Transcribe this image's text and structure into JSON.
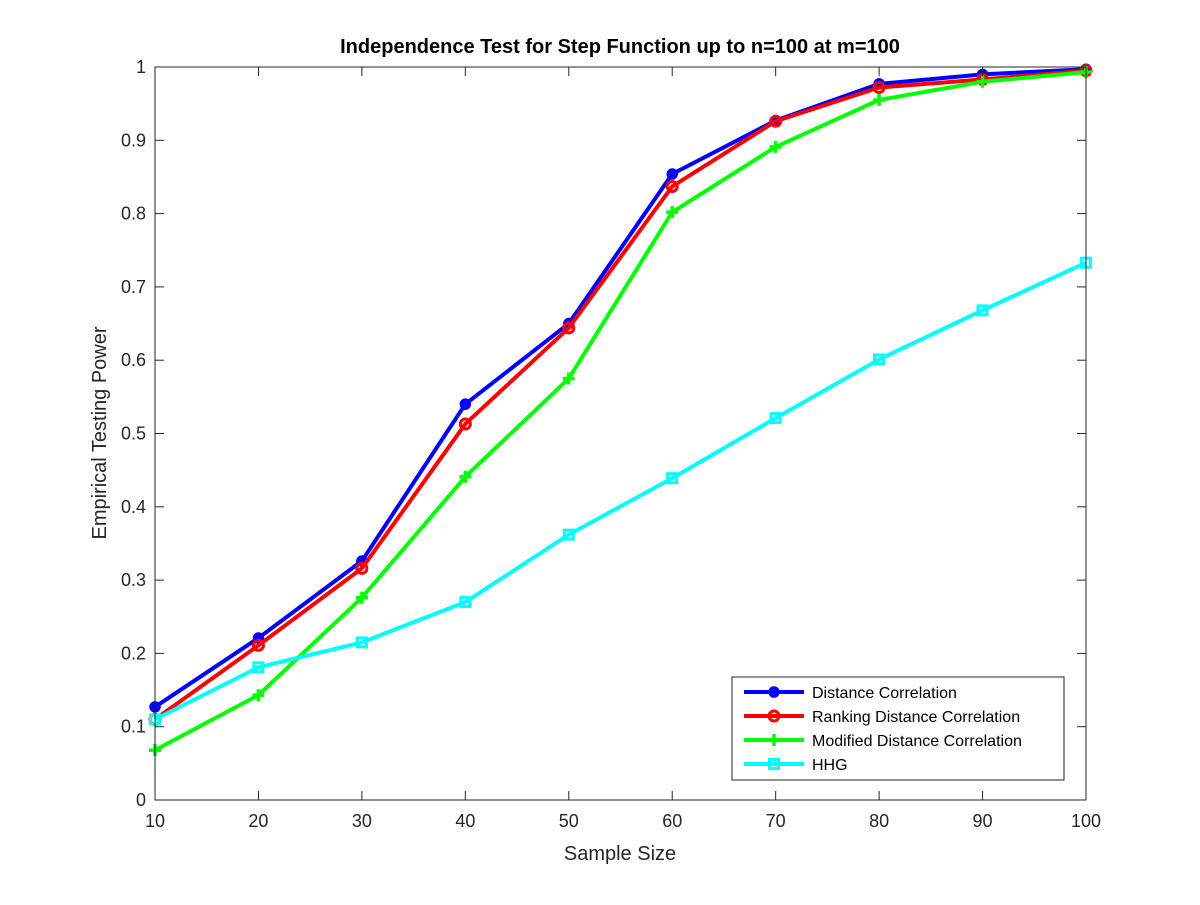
{
  "chart_data": {
    "type": "line",
    "title": "Independence Test for Step Function up to n=100 at m=100",
    "xlabel": "Sample Size",
    "ylabel": "Empirical Testing Power",
    "x": [
      10,
      20,
      30,
      40,
      50,
      60,
      70,
      80,
      90,
      100
    ],
    "xlim": [
      10,
      100
    ],
    "ylim": [
      0,
      1
    ],
    "xticks": [
      10,
      20,
      30,
      40,
      50,
      60,
      70,
      80,
      90,
      100
    ],
    "yticks": [
      0,
      0.1,
      0.2,
      0.3,
      0.4,
      0.5,
      0.6,
      0.7,
      0.8,
      0.9,
      1
    ],
    "xtick_labels": [
      "10",
      "20",
      "30",
      "40",
      "50",
      "60",
      "70",
      "80",
      "90",
      "100"
    ],
    "ytick_labels": [
      "0",
      "0.1",
      "0.2",
      "0.3",
      "0.4",
      "0.5",
      "0.6",
      "0.7",
      "0.8",
      "0.9",
      "1"
    ],
    "grid": false,
    "legend_position": "bottom-right",
    "series": [
      {
        "name": "Distance Correlation",
        "color": "#0000ff",
        "marker": "filled-circle",
        "values": [
          0.127,
          0.221,
          0.326,
          0.54,
          0.65,
          0.854,
          0.927,
          0.977,
          0.99,
          0.997
        ]
      },
      {
        "name": "Ranking Distance Correlation",
        "color": "#ff0000",
        "marker": "open-circle",
        "values": [
          0.11,
          0.211,
          0.316,
          0.513,
          0.644,
          0.837,
          0.926,
          0.972,
          0.983,
          0.995
        ]
      },
      {
        "name": "Modified Distance Correlation",
        "color": "#00ff00",
        "marker": "plus",
        "values": [
          0.068,
          0.143,
          0.276,
          0.441,
          0.575,
          0.802,
          0.891,
          0.955,
          0.98,
          0.993
        ]
      },
      {
        "name": "HHG",
        "color": "#00ffff",
        "marker": "open-square",
        "values": [
          0.11,
          0.181,
          0.215,
          0.27,
          0.362,
          0.439,
          0.521,
          0.601,
          0.668,
          0.733
        ]
      }
    ]
  }
}
